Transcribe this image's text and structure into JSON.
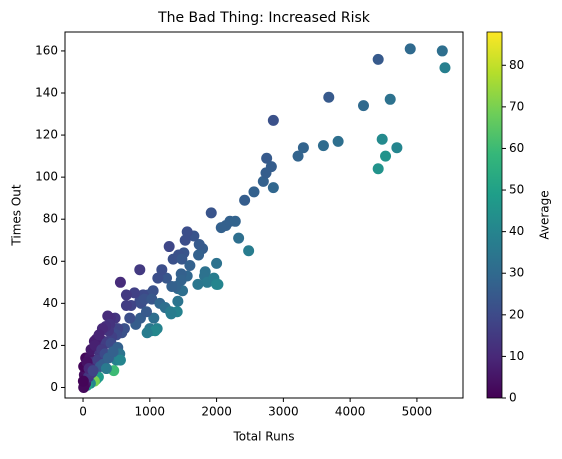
{
  "chart_data": {
    "type": "scatter",
    "title": "The Bad Thing: Increased Risk",
    "x_label": "Total Runs",
    "y_label": "Times Out",
    "colorbar_label": "Average",
    "colormap": "viridis",
    "xlim": [
      -270,
      5690
    ],
    "ylim": [
      -5,
      169
    ],
    "clim": [
      0,
      88
    ],
    "xticks": [
      0,
      1000,
      2000,
      3000,
      4000,
      5000
    ],
    "yticks": [
      0,
      20,
      40,
      60,
      80,
      100,
      120,
      140,
      160
    ],
    "cticks": [
      0,
      10,
      20,
      30,
      40,
      50,
      60,
      70,
      80
    ],
    "x": [
      5420,
      5380,
      4900,
      4420,
      4420,
      4480,
      4530,
      4600,
      4700,
      4200,
      3820,
      3600,
      3680,
      3300,
      3220,
      2850,
      2750,
      2820,
      2700,
      2740,
      2850,
      2560,
      2420,
      2200,
      2140,
      2280,
      2070,
      1920,
      2330,
      2480,
      1790,
      1740,
      1660,
      1560,
      1530,
      1290,
      1510,
      1430,
      1350,
      1480,
      1600,
      1730,
      1830,
      1820,
      1860,
      2000,
      1960,
      2000,
      2020,
      1720,
      1560,
      1470,
      1420,
      1490,
      1470,
      1390,
      1330,
      1250,
      1180,
      1120,
      1050,
      980,
      900,
      850,
      850,
      770,
      650,
      560,
      720,
      650,
      870,
      920,
      1030,
      1150,
      1230,
      1310,
      1420,
      1410,
      1320,
      1110,
      1020,
      1000,
      1080,
      960,
      1060,
      860,
      950,
      790,
      700,
      620,
      580,
      520,
      480,
      410,
      370,
      400,
      500,
      430,
      380,
      340,
      290,
      300,
      350,
      420,
      520,
      550,
      500,
      560,
      460,
      200,
      230,
      170,
      110,
      60,
      40,
      20,
      10,
      30,
      20,
      50,
      10,
      40,
      100,
      150,
      120,
      200,
      170,
      250,
      220,
      260,
      300,
      350,
      80,
      130,
      180,
      240,
      280,
      330,
      380,
      450,
      5,
      60,
      90,
      150
    ],
    "y": [
      152,
      160,
      161,
      156,
      104,
      118,
      110,
      137,
      114,
      134,
      117,
      115,
      138,
      114,
      110,
      127,
      109,
      105,
      98,
      102,
      95,
      93,
      89,
      79,
      77,
      79,
      76,
      83,
      71,
      65,
      66,
      68,
      72,
      74,
      70,
      67,
      64,
      63,
      61,
      61,
      58,
      63,
      55,
      53,
      50,
      59,
      52,
      49,
      49,
      49,
      53,
      54,
      47,
      46,
      51,
      48,
      48,
      52,
      56,
      52,
      46,
      44,
      44,
      41,
      56,
      45,
      44,
      50,
      39,
      39,
      40,
      42,
      42,
      40,
      38,
      36,
      41,
      36,
      35,
      28,
      27,
      28,
      27,
      26,
      33,
      33,
      36,
      30,
      33,
      28,
      26,
      28,
      33,
      33,
      34,
      30,
      25,
      24,
      27,
      29,
      28,
      22,
      21,
      21,
      19,
      16,
      13,
      13,
      8,
      4,
      5,
      3,
      2,
      1,
      2,
      1,
      0,
      4,
      6,
      8,
      10,
      14,
      14,
      12,
      18,
      23,
      22,
      16,
      13,
      10,
      11,
      9,
      5,
      7,
      20,
      25,
      18,
      16,
      14,
      17,
      3,
      12,
      9,
      8
    ],
    "c": [
      38,
      32,
      30,
      25,
      45,
      42,
      45,
      33,
      40,
      30,
      32,
      31,
      25,
      28,
      28,
      22,
      25,
      26,
      27,
      26,
      29,
      27,
      26,
      27,
      27,
      28,
      27,
      23,
      32,
      37,
      26,
      25,
      23,
      21,
      21,
      19,
      23,
      22,
      22,
      24,
      27,
      27,
      33,
      33,
      36,
      33,
      37,
      40,
      40,
      35,
      29,
      27,
      30,
      32,
      28,
      28,
      27,
      24,
      21,
      21,
      22,
      22,
      20,
      20,
      15,
      17,
      15,
      11,
      18,
      16,
      21,
      22,
      24,
      29,
      32,
      36,
      34,
      39,
      37,
      39,
      37,
      35,
      41,
      37,
      32,
      26,
      25,
      26,
      21,
      22,
      22,
      18,
      14,
      12,
      11,
      13,
      20,
      17,
      14,
      12,
      10,
      14,
      16,
      20,
      27,
      34,
      38,
      40,
      60,
      53,
      48,
      70,
      40,
      50,
      8,
      4,
      2,
      5,
      3,
      4,
      1,
      2,
      5,
      10,
      6,
      8,
      7,
      14,
      16,
      25,
      26,
      36,
      14,
      15,
      8,
      9,
      15,
      20,
      27,
      27,
      1,
      4,
      10,
      18
    ]
  }
}
